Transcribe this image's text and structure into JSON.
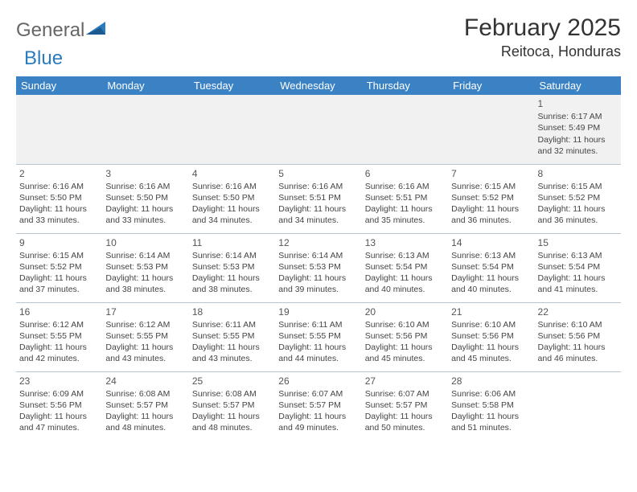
{
  "logo": {
    "text1": "General",
    "text2": "Blue"
  },
  "header": {
    "month": "February 2025",
    "location": "Reitoca, Honduras"
  },
  "colors": {
    "header_bg": "#3b82c4",
    "header_text": "#ffffff",
    "grid_line": "#b8c4ce",
    "first_row_bg": "#f1f1f1",
    "text": "#444444",
    "logo_blue": "#2b7bbf"
  },
  "weekdays": [
    "Sunday",
    "Monday",
    "Tuesday",
    "Wednesday",
    "Thursday",
    "Friday",
    "Saturday"
  ],
  "weeks": [
    [
      null,
      null,
      null,
      null,
      null,
      null,
      {
        "d": "1",
        "sr": "6:17 AM",
        "ss": "5:49 PM",
        "dl": "11 hours and 32 minutes."
      }
    ],
    [
      {
        "d": "2",
        "sr": "6:16 AM",
        "ss": "5:50 PM",
        "dl": "11 hours and 33 minutes."
      },
      {
        "d": "3",
        "sr": "6:16 AM",
        "ss": "5:50 PM",
        "dl": "11 hours and 33 minutes."
      },
      {
        "d": "4",
        "sr": "6:16 AM",
        "ss": "5:50 PM",
        "dl": "11 hours and 34 minutes."
      },
      {
        "d": "5",
        "sr": "6:16 AM",
        "ss": "5:51 PM",
        "dl": "11 hours and 34 minutes."
      },
      {
        "d": "6",
        "sr": "6:16 AM",
        "ss": "5:51 PM",
        "dl": "11 hours and 35 minutes."
      },
      {
        "d": "7",
        "sr": "6:15 AM",
        "ss": "5:52 PM",
        "dl": "11 hours and 36 minutes."
      },
      {
        "d": "8",
        "sr": "6:15 AM",
        "ss": "5:52 PM",
        "dl": "11 hours and 36 minutes."
      }
    ],
    [
      {
        "d": "9",
        "sr": "6:15 AM",
        "ss": "5:52 PM",
        "dl": "11 hours and 37 minutes."
      },
      {
        "d": "10",
        "sr": "6:14 AM",
        "ss": "5:53 PM",
        "dl": "11 hours and 38 minutes."
      },
      {
        "d": "11",
        "sr": "6:14 AM",
        "ss": "5:53 PM",
        "dl": "11 hours and 38 minutes."
      },
      {
        "d": "12",
        "sr": "6:14 AM",
        "ss": "5:53 PM",
        "dl": "11 hours and 39 minutes."
      },
      {
        "d": "13",
        "sr": "6:13 AM",
        "ss": "5:54 PM",
        "dl": "11 hours and 40 minutes."
      },
      {
        "d": "14",
        "sr": "6:13 AM",
        "ss": "5:54 PM",
        "dl": "11 hours and 40 minutes."
      },
      {
        "d": "15",
        "sr": "6:13 AM",
        "ss": "5:54 PM",
        "dl": "11 hours and 41 minutes."
      }
    ],
    [
      {
        "d": "16",
        "sr": "6:12 AM",
        "ss": "5:55 PM",
        "dl": "11 hours and 42 minutes."
      },
      {
        "d": "17",
        "sr": "6:12 AM",
        "ss": "5:55 PM",
        "dl": "11 hours and 43 minutes."
      },
      {
        "d": "18",
        "sr": "6:11 AM",
        "ss": "5:55 PM",
        "dl": "11 hours and 43 minutes."
      },
      {
        "d": "19",
        "sr": "6:11 AM",
        "ss": "5:55 PM",
        "dl": "11 hours and 44 minutes."
      },
      {
        "d": "20",
        "sr": "6:10 AM",
        "ss": "5:56 PM",
        "dl": "11 hours and 45 minutes."
      },
      {
        "d": "21",
        "sr": "6:10 AM",
        "ss": "5:56 PM",
        "dl": "11 hours and 45 minutes."
      },
      {
        "d": "22",
        "sr": "6:10 AM",
        "ss": "5:56 PM",
        "dl": "11 hours and 46 minutes."
      }
    ],
    [
      {
        "d": "23",
        "sr": "6:09 AM",
        "ss": "5:56 PM",
        "dl": "11 hours and 47 minutes."
      },
      {
        "d": "24",
        "sr": "6:08 AM",
        "ss": "5:57 PM",
        "dl": "11 hours and 48 minutes."
      },
      {
        "d": "25",
        "sr": "6:08 AM",
        "ss": "5:57 PM",
        "dl": "11 hours and 48 minutes."
      },
      {
        "d": "26",
        "sr": "6:07 AM",
        "ss": "5:57 PM",
        "dl": "11 hours and 49 minutes."
      },
      {
        "d": "27",
        "sr": "6:07 AM",
        "ss": "5:57 PM",
        "dl": "11 hours and 50 minutes."
      },
      {
        "d": "28",
        "sr": "6:06 AM",
        "ss": "5:58 PM",
        "dl": "11 hours and 51 minutes."
      },
      null
    ]
  ],
  "labels": {
    "sunrise": "Sunrise: ",
    "sunset": "Sunset: ",
    "daylight": "Daylight: "
  }
}
